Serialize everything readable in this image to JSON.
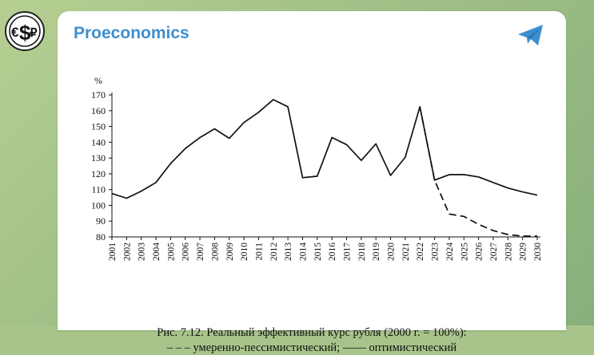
{
  "header": {
    "channel_name": "Proeconomics",
    "avatar_icon": "ruble-euro-dollar-logo-icon",
    "share_icon": "telegram-send-icon",
    "accent_color": "#3d8fd1"
  },
  "figure": {
    "caption_line1": "Рис. 7.12. Реальный эффективный курс рубля (2000 г. = 100%):",
    "caption_line2": "– – – умеренно-пессимистический; —— оптимистический"
  },
  "chart_data": {
    "type": "line",
    "ylabel": "%",
    "ylim": [
      80,
      170
    ],
    "yticks": [
      80,
      90,
      100,
      110,
      120,
      130,
      140,
      150,
      160,
      170
    ],
    "x": [
      "2001",
      "2002",
      "2003",
      "2004",
      "2005",
      "2006",
      "2007",
      "2008",
      "2009",
      "2010",
      "2011",
      "2012",
      "2013",
      "2014",
      "2015",
      "2016",
      "2017",
      "2018",
      "2019",
      "2020",
      "2021",
      "2022",
      "2023",
      "2024",
      "2025",
      "2026",
      "2027",
      "2028",
      "2029",
      "2030"
    ],
    "series": [
      {
        "name": "",
        "style": "solid",
        "values": [
          107.5,
          104.5,
          109,
          114.5,
          126.5,
          136,
          143,
          148.5,
          142.5,
          152.5,
          159,
          167,
          162.5,
          117.5,
          118.5,
          143,
          138.5,
          128.5,
          139,
          119,
          130.5,
          162.5,
          116,
          119.5,
          119.5,
          118,
          114.5,
          111,
          108.5,
          106.5
        ]
      },
      {
        "name": "",
        "style": "dashed",
        "values": [
          null,
          null,
          null,
          null,
          null,
          null,
          null,
          null,
          null,
          null,
          null,
          null,
          null,
          null,
          null,
          null,
          null,
          null,
          null,
          null,
          null,
          162.5,
          116,
          94.5,
          93,
          88,
          84,
          81.5,
          80.5,
          80.5
        ]
      }
    ],
    "grid": false
  }
}
